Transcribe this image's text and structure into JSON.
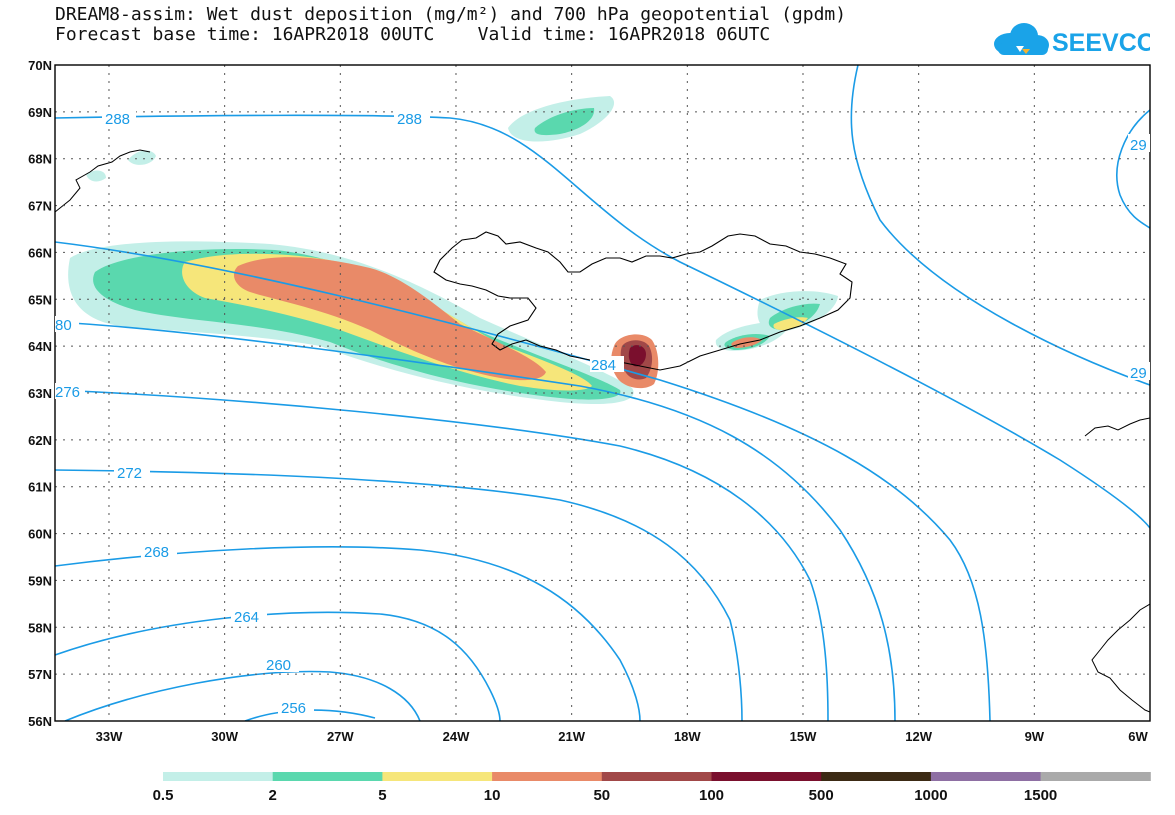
{
  "title": {
    "line1": "DREAM8-assim: Wet dust deposition (mg/m²) and 700 hPa geopotential (gpdm)",
    "line2": "Forecast base time: 16APR2018 00UTC    Valid time: 16APR2018 06UTC"
  },
  "logo": {
    "text": "SEEVCCC",
    "icon": "cloud-logo-icon",
    "color": "#1aa3e8"
  },
  "axes": {
    "lat_labels": [
      "70N",
      "69N",
      "68N",
      "67N",
      "66N",
      "65N",
      "64N",
      "63N",
      "62N",
      "61N",
      "60N",
      "59N",
      "58N",
      "57N",
      "56N"
    ],
    "lon_labels": [
      "33W",
      "30W",
      "27W",
      "24W",
      "21W",
      "18W",
      "15W",
      "12W",
      "9W",
      "6W"
    ],
    "lat_range": [
      56,
      70
    ],
    "lon_range": [
      -34.4,
      -6
    ],
    "grid": true
  },
  "contours": {
    "color": "#1a9be6",
    "labels": [
      "288",
      "288",
      "29",
      "80",
      "284",
      "276",
      "29",
      "272",
      "268",
      "264",
      "260",
      "256"
    ]
  },
  "legend": {
    "labels": [
      "0.5",
      "2",
      "5",
      "10",
      "50",
      "100",
      "500",
      "1000",
      "1500"
    ],
    "colors": [
      "#c3efe8",
      "#5ad8ae",
      "#f6e67a",
      "#e98a68",
      "#a14848",
      "#7a0f2d",
      "#3c2a14",
      "#8e6fa3",
      "#aaaaaa"
    ]
  }
}
